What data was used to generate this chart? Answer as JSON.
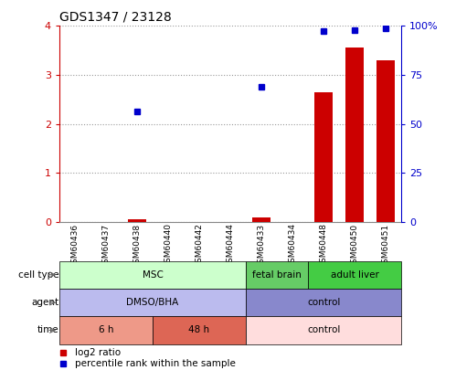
{
  "title": "GDS1347 / 23128",
  "samples": [
    "GSM60436",
    "GSM60437",
    "GSM60438",
    "GSM60440",
    "GSM60442",
    "GSM60444",
    "GSM60433",
    "GSM60434",
    "GSM60448",
    "GSM60450",
    "GSM60451"
  ],
  "log2_ratio": [
    0.0,
    0.0,
    0.05,
    0.0,
    0.0,
    0.0,
    0.1,
    0.0,
    2.65,
    3.55,
    3.3
  ],
  "percentile_rank_left": [
    null,
    null,
    2.25,
    null,
    null,
    null,
    2.75,
    null,
    3.9,
    3.92,
    3.95
  ],
  "ylim_left": [
    0,
    4
  ],
  "ylim_right": [
    0,
    100
  ],
  "yticks_left": [
    0,
    1,
    2,
    3,
    4
  ],
  "yticks_right": [
    0,
    25,
    50,
    75,
    100
  ],
  "yticklabels_right": [
    "0",
    "25",
    "50",
    "75",
    "100%"
  ],
  "bar_color": "#cc0000",
  "dot_color": "#0000cc",
  "cell_type_groups": [
    {
      "label": "MSC",
      "start": 0,
      "end": 6,
      "color": "#ccffcc"
    },
    {
      "label": "fetal brain",
      "start": 6,
      "end": 8,
      "color": "#66cc66"
    },
    {
      "label": "adult liver",
      "start": 8,
      "end": 11,
      "color": "#44cc44"
    }
  ],
  "agent_groups": [
    {
      "label": "DMSO/BHA",
      "start": 0,
      "end": 6,
      "color": "#bbbbee"
    },
    {
      "label": "control",
      "start": 6,
      "end": 11,
      "color": "#8888cc"
    }
  ],
  "time_groups": [
    {
      "label": "6 h",
      "start": 0,
      "end": 3,
      "color": "#ee9988"
    },
    {
      "label": "48 h",
      "start": 3,
      "end": 6,
      "color": "#dd6655"
    },
    {
      "label": "control",
      "start": 6,
      "end": 11,
      "color": "#ffdddd"
    }
  ],
  "row_labels": [
    "cell type",
    "agent",
    "time"
  ],
  "legend_items": [
    {
      "color": "#cc0000",
      "label": "log2 ratio"
    },
    {
      "color": "#0000cc",
      "label": "percentile rank within the sample"
    }
  ],
  "grid_color": "#999999",
  "axis_left_color": "#cc0000",
  "axis_right_color": "#0000cc",
  "bg_color": "#ffffff"
}
